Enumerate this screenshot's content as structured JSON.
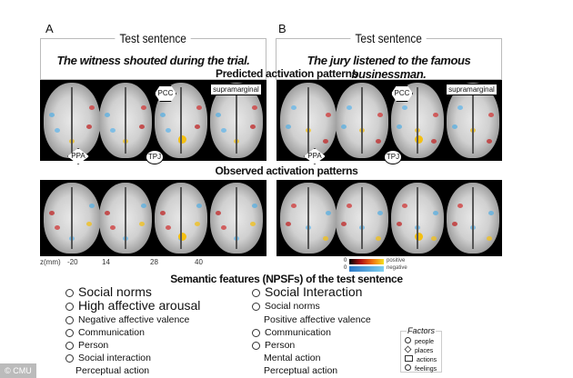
{
  "panels": [
    {
      "letter": "A",
      "header": "Test sentence",
      "sentence": "The witness shouted during the trial."
    },
    {
      "letter": "B",
      "header": "Test sentence",
      "sentence": "The jury listened to the famous businessman."
    }
  ],
  "predicted_title": "Predicted activation patterns",
  "observed_title": "Observed activation patterns",
  "region_labels": {
    "pcc": "PCC",
    "supramarginal": "supramarginal",
    "ppa": "PPA",
    "tpj": "TPJ"
  },
  "z_axis": {
    "label": "z(mm)",
    "ticks": [
      "-20",
      "14",
      "28",
      "40"
    ]
  },
  "colorbar": {
    "positive_label": "positive",
    "negative_label": "negative",
    "zero": "0",
    "positive_color": "#f5e020",
    "negative_color": "#7fd0f0"
  },
  "features_title": "Semantic features (NPSFs) of the test sentence",
  "features_a": [
    {
      "label": "Social norms",
      "marker": "circle",
      "size": "large"
    },
    {
      "label": "High affective arousal",
      "marker": "circle",
      "size": "large"
    },
    {
      "label": "Negative affective valence",
      "marker": "circle",
      "size": "small"
    },
    {
      "label": "Communication",
      "marker": "circle",
      "size": "small"
    },
    {
      "label": "Person",
      "marker": "circle",
      "size": "small"
    },
    {
      "label": "Social interaction",
      "marker": "circle",
      "size": "small"
    },
    {
      "label": "Perceptual action",
      "marker": "none",
      "size": "small"
    }
  ],
  "features_b": [
    {
      "label": "Social Interaction",
      "marker": "circle",
      "size": "large"
    },
    {
      "label": "Social norms",
      "marker": "circle",
      "size": "small"
    },
    {
      "label": "Positive affective valence",
      "marker": "none",
      "size": "small"
    },
    {
      "label": "Communication",
      "marker": "circle",
      "size": "small"
    },
    {
      "label": "Person",
      "marker": "circle",
      "size": "small"
    },
    {
      "label": "Mental action",
      "marker": "none",
      "size": "small"
    },
    {
      "label": "Perceptual action",
      "marker": "none",
      "size": "small"
    }
  ],
  "factors": {
    "title": "Factors",
    "items": [
      {
        "label": "people",
        "marker": "circle"
      },
      {
        "label": "places",
        "marker": "diamond"
      },
      {
        "label": "actions",
        "marker": "square"
      },
      {
        "label": "feelings",
        "marker": "circle"
      }
    ]
  },
  "credit": "© CMU"
}
